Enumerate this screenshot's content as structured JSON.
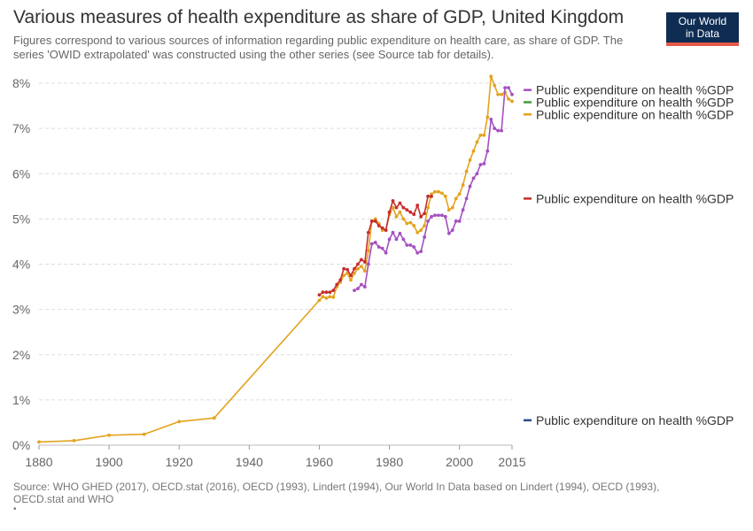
{
  "header": {
    "title": "Various measures of health expenditure as share of GDP, United Kingdom",
    "subtitle": "Figures correspond to various sources of information regarding public expenditure on health care, as share of GDP. The series 'OWID extrapolated' was constructed using the other series (see Source tab for details)."
  },
  "logo": {
    "line1": "Our World",
    "line2": "in Data"
  },
  "footer": {
    "source": "Source: WHO GHED (2017), OECD.stat (2016), OECD (1993), Lindert (1994), Our World In Data based on Lindert (1994), OECD (1993), OECD.stat and WHO",
    "dot": "•"
  },
  "chart_data": {
    "type": "line",
    "xlim": [
      1880,
      2015
    ],
    "ylim": [
      0,
      8
    ],
    "x_ticks": [
      "1880",
      "1900",
      "1920",
      "1940",
      "1960",
      "1980",
      "2000",
      "2015"
    ],
    "x_tick_values": [
      1880,
      1900,
      1920,
      1940,
      1960,
      1980,
      2000,
      2015
    ],
    "y_ticks": [
      "0%",
      "1%",
      "2%",
      "3%",
      "4%",
      "5%",
      "6%",
      "7%",
      "8%"
    ],
    "y_tick_values": [
      0,
      1,
      2,
      3,
      4,
      5,
      6,
      7,
      8
    ],
    "grid": true,
    "series": [
      {
        "name": "Public expenditure on health %GDP",
        "color": "#e3a31e",
        "points": [
          [
            1880,
            0.07
          ],
          [
            1890,
            0.1
          ],
          [
            1900,
            0.22
          ],
          [
            1910,
            0.24
          ],
          [
            1920,
            0.52
          ],
          [
            1930,
            0.6
          ],
          [
            1960,
            3.2
          ],
          [
            1961,
            3.28
          ],
          [
            1962,
            3.25
          ],
          [
            1963,
            3.28
          ],
          [
            1964,
            3.27
          ],
          [
            1965,
            3.5
          ],
          [
            1966,
            3.6
          ],
          [
            1967,
            3.75
          ],
          [
            1968,
            3.8
          ],
          [
            1969,
            3.65
          ],
          [
            1970,
            3.8
          ],
          [
            1971,
            3.9
          ],
          [
            1972,
            3.95
          ],
          [
            1973,
            3.85
          ],
          [
            1974,
            4.3
          ],
          [
            1975,
            4.95
          ],
          [
            1976,
            5.0
          ],
          [
            1977,
            4.9
          ],
          [
            1978,
            4.75
          ],
          [
            1979,
            4.75
          ],
          [
            1980,
            5.1
          ],
          [
            1981,
            5.25
          ],
          [
            1982,
            5.05
          ],
          [
            1983,
            5.15
          ],
          [
            1984,
            5.0
          ],
          [
            1985,
            4.9
          ],
          [
            1986,
            4.92
          ],
          [
            1987,
            4.85
          ],
          [
            1988,
            4.7
          ],
          [
            1989,
            4.75
          ],
          [
            1990,
            4.85
          ],
          [
            1991,
            5.25
          ],
          [
            1992,
            5.55
          ],
          [
            1993,
            5.6
          ],
          [
            1994,
            5.6
          ],
          [
            1995,
            5.57
          ],
          [
            1996,
            5.5
          ],
          [
            1997,
            5.2
          ],
          [
            1998,
            5.25
          ],
          [
            1999,
            5.45
          ],
          [
            2000,
            5.55
          ],
          [
            2001,
            5.75
          ],
          [
            2002,
            6.05
          ],
          [
            2003,
            6.3
          ],
          [
            2004,
            6.5
          ],
          [
            2005,
            6.7
          ],
          [
            2006,
            6.85
          ],
          [
            2007,
            6.85
          ],
          [
            2008,
            7.25
          ],
          [
            2009,
            8.15
          ],
          [
            2010,
            7.95
          ],
          [
            2011,
            7.75
          ],
          [
            2012,
            7.75
          ],
          [
            2013,
            7.8
          ],
          [
            2014,
            7.65
          ],
          [
            2015,
            7.6
          ]
        ]
      },
      {
        "name": "Public expenditure on health %GDP",
        "color": "#c72d2d",
        "points": [
          [
            1960,
            3.32
          ],
          [
            1961,
            3.38
          ],
          [
            1962,
            3.38
          ],
          [
            1963,
            3.38
          ],
          [
            1964,
            3.42
          ],
          [
            1965,
            3.55
          ],
          [
            1966,
            3.65
          ],
          [
            1967,
            3.9
          ],
          [
            1968,
            3.88
          ],
          [
            1969,
            3.75
          ],
          [
            1970,
            3.9
          ],
          [
            1971,
            4.0
          ],
          [
            1972,
            4.1
          ],
          [
            1973,
            4.05
          ],
          [
            1974,
            4.7
          ],
          [
            1975,
            4.95
          ],
          [
            1976,
            4.95
          ],
          [
            1977,
            4.85
          ],
          [
            1978,
            4.8
          ],
          [
            1979,
            4.75
          ],
          [
            1980,
            5.15
          ],
          [
            1981,
            5.4
          ],
          [
            1982,
            5.25
          ],
          [
            1983,
            5.35
          ],
          [
            1984,
            5.25
          ],
          [
            1985,
            5.2
          ],
          [
            1986,
            5.15
          ],
          [
            1987,
            5.1
          ],
          [
            1988,
            5.3
          ],
          [
            1989,
            5.05
          ],
          [
            1990,
            5.12
          ],
          [
            1991,
            5.5
          ],
          [
            1992,
            5.5
          ]
        ]
      },
      {
        "name": "Public expenditure on health %GDP",
        "color": "#a450c0",
        "points": [
          [
            1970,
            3.42
          ],
          [
            1971,
            3.46
          ],
          [
            1972,
            3.55
          ],
          [
            1973,
            3.5
          ],
          [
            1974,
            4.0
          ],
          [
            1975,
            4.45
          ],
          [
            1976,
            4.48
          ],
          [
            1977,
            4.38
          ],
          [
            1978,
            4.35
          ],
          [
            1979,
            4.25
          ],
          [
            1980,
            4.55
          ],
          [
            1981,
            4.7
          ],
          [
            1982,
            4.55
          ],
          [
            1983,
            4.68
          ],
          [
            1984,
            4.55
          ],
          [
            1985,
            4.42
          ],
          [
            1986,
            4.42
          ],
          [
            1987,
            4.38
          ],
          [
            1988,
            4.25
          ],
          [
            1989,
            4.28
          ],
          [
            1990,
            4.6
          ],
          [
            1991,
            4.95
          ],
          [
            1992,
            5.05
          ],
          [
            1993,
            5.08
          ],
          [
            1994,
            5.08
          ],
          [
            1995,
            5.08
          ],
          [
            1996,
            5.05
          ],
          [
            1997,
            4.68
          ],
          [
            1998,
            4.75
          ],
          [
            1999,
            4.95
          ],
          [
            2000,
            4.95
          ],
          [
            2001,
            5.2
          ],
          [
            2002,
            5.45
          ],
          [
            2003,
            5.72
          ],
          [
            2004,
            5.9
          ],
          [
            2005,
            6.0
          ],
          [
            2006,
            6.2
          ],
          [
            2007,
            6.22
          ],
          [
            2008,
            6.5
          ],
          [
            2009,
            7.2
          ],
          [
            2010,
            7.0
          ],
          [
            2011,
            6.95
          ],
          [
            2012,
            6.95
          ],
          [
            2013,
            7.9
          ],
          [
            2014,
            7.9
          ],
          [
            2015,
            7.75
          ]
        ]
      }
    ],
    "legend": [
      {
        "label": "Public expenditure on health %GDP",
        "color": "#a450c0"
      },
      {
        "label": "Public expenditure on health %GDP",
        "color": "#3f9b3a"
      },
      {
        "label": "Public expenditure on health %GDP",
        "color": "#e3a31e"
      },
      {
        "label": "Public expenditure on health %GDP",
        "color": "#c72d2d"
      },
      {
        "label": "Public expenditure on health %GDP",
        "color": "#2a4b8c"
      }
    ],
    "legend_y_values": [
      7.85,
      7.58,
      7.31,
      5.45,
      0.55
    ]
  }
}
